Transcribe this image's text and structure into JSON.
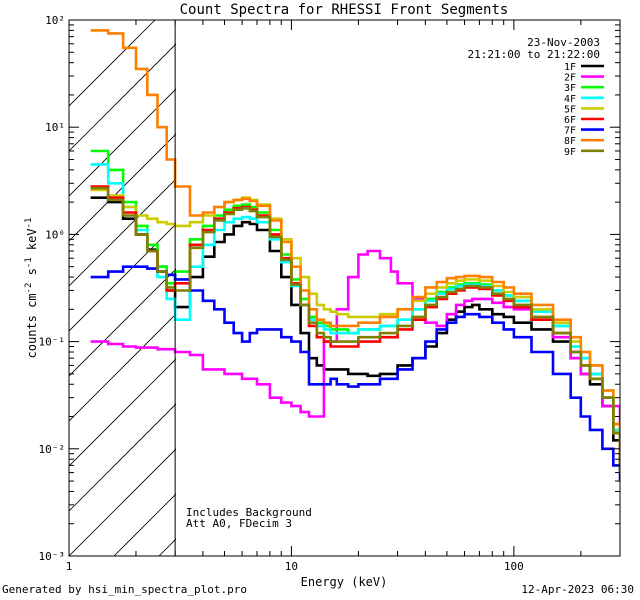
{
  "chart_data": {
    "type": "line",
    "title": "Count Spectra for RHESSI Front Segments",
    "xlabel": "Energy (keV)",
    "ylabel": "counts cm-2 s-1 keV-1",
    "xscale": "log",
    "yscale": "log",
    "xlim": [
      1,
      300
    ],
    "ylim": [
      0.001,
      100
    ],
    "x_tick_labels": [
      "1",
      "10",
      "100"
    ],
    "y_tick_labels": [
      "10⁻³",
      "10⁻²",
      "10⁻¹",
      "10⁰",
      "10¹",
      "10²"
    ],
    "threshold_line_keV": 3,
    "date": "23-Nov-2003",
    "time_range": "21:21:00 to 21:22:00",
    "annotations": [
      "Includes Background",
      "Att A0, FDecim 3"
    ],
    "legend_position": "top-right",
    "series": [
      {
        "name": "1F",
        "color": "#000000",
        "x": [
          1.25,
          1.5,
          1.75,
          2,
          2.25,
          2.5,
          2.75,
          3,
          3.5,
          4,
          4.5,
          5,
          5.5,
          6,
          6.5,
          7,
          8,
          9,
          10,
          11,
          12,
          13,
          14,
          15,
          16,
          18,
          20,
          22,
          25,
          30,
          35,
          40,
          45,
          50,
          55,
          60,
          65,
          70,
          80,
          90,
          100,
          120,
          150,
          180,
          200,
          220,
          250,
          280,
          300
        ],
        "values": [
          2.2,
          2.0,
          1.4,
          1.0,
          0.72,
          0.5,
          0.3,
          0.21,
          0.4,
          0.62,
          0.85,
          1.0,
          1.2,
          1.3,
          1.25,
          1.1,
          0.7,
          0.4,
          0.22,
          0.12,
          0.07,
          0.06,
          0.055,
          0.055,
          0.055,
          0.05,
          0.05,
          0.048,
          0.05,
          0.06,
          0.07,
          0.09,
          0.12,
          0.16,
          0.19,
          0.21,
          0.22,
          0.2,
          0.18,
          0.17,
          0.15,
          0.13,
          0.1,
          0.07,
          0.05,
          0.04,
          0.025,
          0.012,
          0.006
        ]
      },
      {
        "name": "2F",
        "color": "#ff00ff",
        "x": [
          1.25,
          1.5,
          1.75,
          2,
          2.5,
          3,
          3.5,
          4,
          5,
          6,
          7,
          8,
          9,
          10,
          11,
          12,
          14,
          16,
          18,
          20,
          22,
          25,
          28,
          30,
          35,
          40,
          45,
          50,
          55,
          60,
          65,
          70,
          80,
          90,
          100,
          120,
          150,
          180,
          200,
          250,
          300
        ],
        "values": [
          0.1,
          0.095,
          0.09,
          0.088,
          0.085,
          0.08,
          0.075,
          0.055,
          0.05,
          0.045,
          0.04,
          0.03,
          0.027,
          0.025,
          0.022,
          0.02,
          0.1,
          0.2,
          0.4,
          0.65,
          0.7,
          0.6,
          0.45,
          0.35,
          0.25,
          0.15,
          0.14,
          0.18,
          0.22,
          0.24,
          0.25,
          0.25,
          0.23,
          0.21,
          0.2,
          0.16,
          0.11,
          0.07,
          0.05,
          0.025,
          0.008
        ]
      },
      {
        "name": "3F",
        "color": "#00ff00",
        "x": [
          1.25,
          1.5,
          1.75,
          2,
          2.25,
          2.5,
          2.75,
          3,
          3.5,
          4,
          4.5,
          5,
          5.5,
          6,
          6.5,
          7,
          8,
          9,
          10,
          11,
          12,
          13,
          14,
          15,
          16,
          18,
          20,
          22,
          25,
          30,
          35,
          40,
          45,
          50,
          55,
          60,
          65,
          70,
          80,
          90,
          100,
          120,
          150,
          180,
          200,
          220,
          250,
          280,
          300
        ],
        "values": [
          6.0,
          4.0,
          2.0,
          1.2,
          0.8,
          0.5,
          0.35,
          0.45,
          0.9,
          1.2,
          1.5,
          1.7,
          1.85,
          1.9,
          1.8,
          1.6,
          1.1,
          0.65,
          0.38,
          0.25,
          0.17,
          0.15,
          0.14,
          0.13,
          0.13,
          0.12,
          0.13,
          0.13,
          0.14,
          0.16,
          0.2,
          0.25,
          0.29,
          0.32,
          0.34,
          0.35,
          0.35,
          0.34,
          0.3,
          0.27,
          0.24,
          0.19,
          0.14,
          0.09,
          0.07,
          0.05,
          0.03,
          0.015,
          0.007
        ]
      },
      {
        "name": "4F",
        "color": "#00ffff",
        "x": [
          1.25,
          1.5,
          1.75,
          2,
          2.25,
          2.5,
          2.75,
          3,
          3.5,
          4,
          4.5,
          5,
          5.5,
          6,
          6.5,
          7,
          8,
          9,
          10,
          11,
          12,
          13,
          14,
          15,
          16,
          18,
          20,
          22,
          25,
          30,
          35,
          40,
          45,
          50,
          55,
          60,
          65,
          70,
          80,
          90,
          100,
          120,
          150,
          180,
          200,
          220,
          250,
          280,
          300
        ],
        "values": [
          4.5,
          3.0,
          1.8,
          1.1,
          0.7,
          0.4,
          0.25,
          0.16,
          0.5,
          0.8,
          1.1,
          1.3,
          1.4,
          1.45,
          1.4,
          1.3,
          0.9,
          0.55,
          0.33,
          0.22,
          0.16,
          0.14,
          0.13,
          0.12,
          0.12,
          0.12,
          0.13,
          0.13,
          0.14,
          0.16,
          0.2,
          0.24,
          0.28,
          0.31,
          0.33,
          0.34,
          0.34,
          0.33,
          0.3,
          0.27,
          0.24,
          0.19,
          0.14,
          0.09,
          0.07,
          0.05,
          0.03,
          0.015,
          0.007
        ]
      },
      {
        "name": "5F",
        "color": "#cccc00",
        "x": [
          1.25,
          1.5,
          1.75,
          2,
          2.25,
          2.5,
          2.75,
          3,
          3.5,
          4,
          4.5,
          5,
          5.5,
          6,
          6.5,
          7,
          8,
          9,
          10,
          11,
          12,
          13,
          14,
          15,
          16,
          18,
          20,
          22,
          25,
          30,
          35,
          40,
          45,
          50,
          55,
          60,
          65,
          70,
          80,
          90,
          100,
          120,
          150,
          180,
          200,
          220,
          250,
          280,
          300
        ],
        "values": [
          2.6,
          2.3,
          1.8,
          1.5,
          1.4,
          1.3,
          1.25,
          1.2,
          1.3,
          1.5,
          1.8,
          2.0,
          2.1,
          2.2,
          2.1,
          1.9,
          1.4,
          0.9,
          0.6,
          0.4,
          0.28,
          0.22,
          0.2,
          0.19,
          0.18,
          0.17,
          0.17,
          0.17,
          0.18,
          0.2,
          0.24,
          0.28,
          0.32,
          0.35,
          0.37,
          0.38,
          0.38,
          0.37,
          0.33,
          0.29,
          0.26,
          0.2,
          0.15,
          0.1,
          0.08,
          0.06,
          0.035,
          0.017,
          0.008
        ]
      },
      {
        "name": "6F",
        "color": "#ff0000",
        "x": [
          1.25,
          1.5,
          1.75,
          2,
          2.25,
          2.5,
          2.75,
          3,
          3.5,
          4,
          4.5,
          5,
          5.5,
          6,
          6.5,
          7,
          8,
          9,
          10,
          11,
          12,
          13,
          14,
          15,
          16,
          18,
          20,
          22,
          25,
          30,
          35,
          40,
          45,
          50,
          55,
          60,
          65,
          70,
          80,
          90,
          100,
          120,
          150,
          180,
          200,
          220,
          250,
          280,
          300
        ],
        "values": [
          2.8,
          2.2,
          1.6,
          1.0,
          0.7,
          0.45,
          0.3,
          0.35,
          0.8,
          1.1,
          1.4,
          1.6,
          1.75,
          1.8,
          1.7,
          1.5,
          1.0,
          0.6,
          0.35,
          0.22,
          0.14,
          0.11,
          0.1,
          0.09,
          0.09,
          0.09,
          0.1,
          0.1,
          0.11,
          0.13,
          0.16,
          0.21,
          0.25,
          0.28,
          0.3,
          0.32,
          0.32,
          0.31,
          0.27,
          0.24,
          0.21,
          0.16,
          0.12,
          0.08,
          0.06,
          0.045,
          0.03,
          0.014,
          0.006
        ]
      },
      {
        "name": "7F",
        "color": "#0000ff",
        "x": [
          1.25,
          1.5,
          1.75,
          2,
          2.25,
          2.5,
          2.75,
          3,
          3.5,
          4,
          4.5,
          5,
          5.5,
          6,
          6.5,
          7,
          8,
          9,
          10,
          11,
          12,
          13,
          14,
          15,
          16,
          18,
          20,
          22,
          25,
          30,
          35,
          40,
          45,
          50,
          55,
          60,
          65,
          70,
          80,
          90,
          100,
          120,
          150,
          180,
          200,
          220,
          250,
          280,
          300
        ],
        "values": [
          0.4,
          0.45,
          0.5,
          0.5,
          0.48,
          0.45,
          0.42,
          0.38,
          0.3,
          0.24,
          0.2,
          0.15,
          0.12,
          0.1,
          0.12,
          0.13,
          0.13,
          0.11,
          0.1,
          0.08,
          0.04,
          0.04,
          0.04,
          0.045,
          0.04,
          0.038,
          0.04,
          0.04,
          0.045,
          0.055,
          0.07,
          0.1,
          0.13,
          0.15,
          0.17,
          0.18,
          0.18,
          0.17,
          0.15,
          0.13,
          0.11,
          0.08,
          0.05,
          0.03,
          0.02,
          0.015,
          0.01,
          0.007,
          0.005
        ]
      },
      {
        "name": "8F",
        "color": "#ff8000",
        "x": [
          1.25,
          1.5,
          1.75,
          2,
          2.25,
          2.5,
          2.75,
          3,
          3.5,
          4,
          4.5,
          5,
          5.5,
          6,
          6.5,
          7,
          8,
          9,
          10,
          11,
          12,
          13,
          14,
          15,
          16,
          18,
          20,
          22,
          25,
          30,
          35,
          40,
          45,
          50,
          55,
          60,
          65,
          70,
          80,
          90,
          100,
          120,
          150,
          180,
          200,
          220,
          250,
          280,
          300
        ],
        "values": [
          80,
          75,
          55,
          35,
          20,
          10,
          5,
          2.8,
          1.5,
          1.6,
          1.8,
          2.0,
          2.1,
          2.15,
          2.05,
          1.85,
          1.35,
          0.85,
          0.5,
          0.3,
          0.2,
          0.16,
          0.15,
          0.14,
          0.14,
          0.14,
          0.15,
          0.15,
          0.17,
          0.2,
          0.26,
          0.32,
          0.36,
          0.39,
          0.4,
          0.41,
          0.41,
          0.4,
          0.36,
          0.32,
          0.28,
          0.22,
          0.16,
          0.11,
          0.08,
          0.06,
          0.035,
          0.017,
          0.008
        ]
      },
      {
        "name": "9F",
        "color": "#808000",
        "x": [
          1.25,
          1.5,
          1.75,
          2,
          2.25,
          2.5,
          2.75,
          3,
          3.5,
          4,
          4.5,
          5,
          5.5,
          6,
          6.5,
          7,
          8,
          9,
          10,
          11,
          12,
          13,
          14,
          15,
          16,
          18,
          20,
          22,
          25,
          30,
          35,
          40,
          45,
          50,
          55,
          60,
          65,
          70,
          80,
          90,
          100,
          120,
          150,
          180,
          200,
          220,
          250,
          280,
          300
        ],
        "values": [
          2.7,
          2.1,
          1.5,
          1.0,
          0.7,
          0.45,
          0.32,
          0.3,
          0.75,
          1.05,
          1.35,
          1.55,
          1.7,
          1.75,
          1.65,
          1.45,
          0.95,
          0.58,
          0.34,
          0.22,
          0.15,
          0.12,
          0.11,
          0.1,
          0.1,
          0.1,
          0.11,
          0.11,
          0.12,
          0.14,
          0.17,
          0.22,
          0.26,
          0.29,
          0.31,
          0.33,
          0.33,
          0.32,
          0.28,
          0.25,
          0.22,
          0.17,
          0.12,
          0.08,
          0.06,
          0.045,
          0.03,
          0.014,
          0.006
        ]
      }
    ]
  },
  "footer": {
    "left": "Generated by hsi_min_spectra_plot.pro",
    "right": "12-Apr-2023 06:30"
  }
}
